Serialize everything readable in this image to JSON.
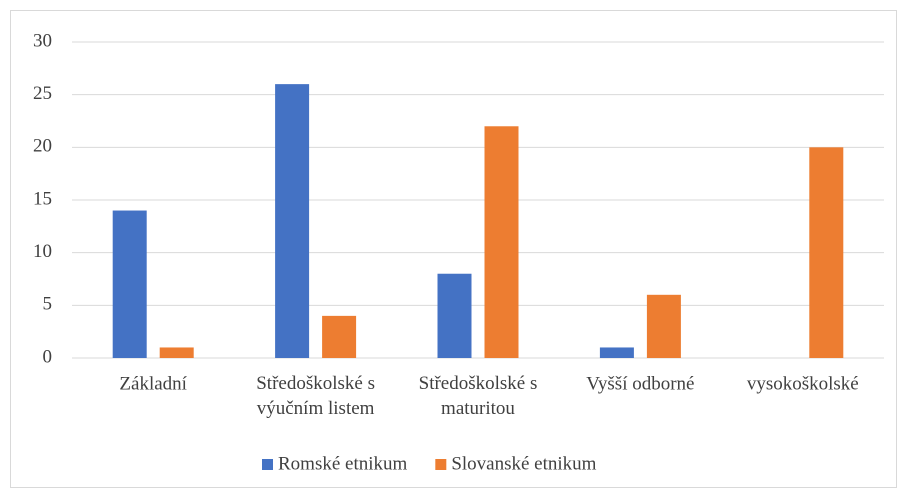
{
  "chart_data": {
    "type": "bar",
    "categories": [
      "Základní",
      "Středoškolské s\nvýučním listem",
      "Středoškolské s\nmaturitou",
      "Vyšší odborné",
      "vysokoškolské"
    ],
    "series": [
      {
        "name": "Romské etnikum",
        "color": "#4472c4",
        "values": [
          14,
          26,
          8,
          1,
          0
        ]
      },
      {
        "name": "Slovanské etnikum",
        "color": "#ed7d31",
        "values": [
          1,
          4,
          22,
          6,
          20
        ]
      }
    ],
    "ylim": [
      0,
      30
    ],
    "yticks": [
      0,
      5,
      10,
      15,
      20,
      25,
      30
    ],
    "grid": true,
    "legend": "bottom"
  }
}
